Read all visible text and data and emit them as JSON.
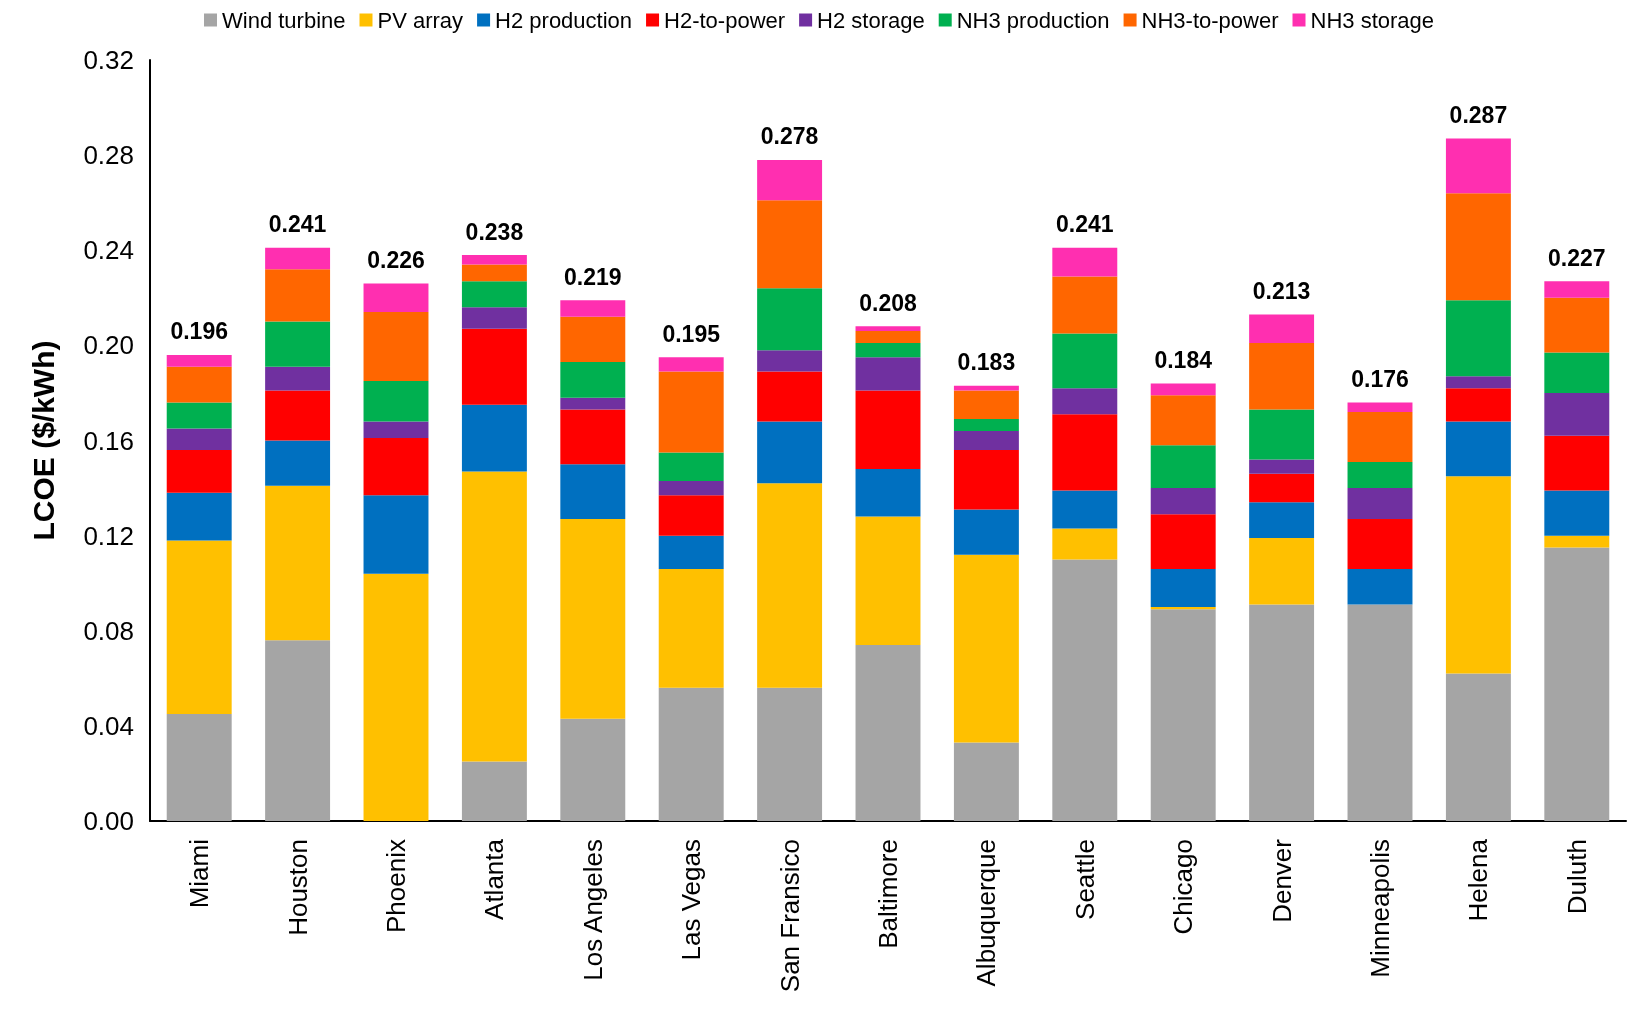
{
  "chart_data": {
    "type": "bar",
    "stacked": true,
    "ylabel": "LCOE ($/kWh)",
    "categories": [
      "Miami",
      "Houston",
      "Phoenix",
      "Atlanta",
      "Los Angeles",
      "Las Vegas",
      "San Fransico",
      "Baltimore",
      "Albuquerque",
      "Seattle",
      "Chicago",
      "Denver",
      "Minneapolis",
      "Helena",
      "Duluth"
    ],
    "series": [
      {
        "name": "Wind turbine",
        "color": "#a5a5a5",
        "values": [
          0.045,
          0.076,
          0,
          0.025,
          0.043,
          0.056,
          0.056,
          0.074,
          0.033,
          0.11,
          0.089,
          0.091,
          0.091,
          0.062,
          0.115
        ]
      },
      {
        "name": "PV array",
        "color": "#ffc000",
        "values": [
          0.073,
          0.065,
          0.104,
          0.122,
          0.084,
          0.05,
          0.086,
          0.054,
          0.079,
          0.013,
          0.001,
          0.028,
          0,
          0.083,
          0.005
        ]
      },
      {
        "name": "H2 production",
        "color": "#0070c0",
        "values": [
          0.02,
          0.019,
          0.033,
          0.028,
          0.023,
          0.014,
          0.026,
          0.02,
          0.019,
          0.016,
          0.016,
          0.015,
          0.015,
          0.023,
          0.019
        ]
      },
      {
        "name": "H2-to-power",
        "color": "#ff0000",
        "values": [
          0.018,
          0.021,
          0.024,
          0.032,
          0.023,
          0.017,
          0.021,
          0.033,
          0.025,
          0.032,
          0.023,
          0.012,
          0.021,
          0.014,
          0.023
        ]
      },
      {
        "name": "H2 storage",
        "color": "#7030a0",
        "values": [
          0.009,
          0.01,
          0.007,
          0.009,
          0.005,
          0.006,
          0.009,
          0.014,
          0.008,
          0.011,
          0.011,
          0.006,
          0.013,
          0.005,
          0.018
        ]
      },
      {
        "name": "NH3 production",
        "color": "#00b050",
        "values": [
          0.011,
          0.019,
          0.017,
          0.011,
          0.015,
          0.012,
          0.026,
          0.006,
          0.005,
          0.023,
          0.018,
          0.021,
          0.011,
          0.032,
          0.017
        ]
      },
      {
        "name": "NH3-to-power",
        "color": "#ff6600",
        "values": [
          0.015,
          0.022,
          0.029,
          0.007,
          0.019,
          0.034,
          0.037,
          0.005,
          0.012,
          0.024,
          0.021,
          0.028,
          0.021,
          0.045,
          0.023
        ]
      },
      {
        "name": "NH3 storage",
        "color": "#ff2fb0",
        "values": [
          0.005,
          0.009,
          0.012,
          0.004,
          0.007,
          0.006,
          0.017,
          0.002,
          0.002,
          0.012,
          0.005,
          0.012,
          0.004,
          0.023,
          0.007
        ]
      }
    ],
    "totals": [
      "0.196",
      "0.241",
      "0.226",
      "0.238",
      "0.219",
      "0.195",
      "0.278",
      "0.208",
      "0.183",
      "0.241",
      "0.184",
      "0.213",
      "0.176",
      "0.287",
      "0.227"
    ],
    "ylim": [
      0,
      0.32
    ],
    "yticks": [
      {
        "value": 0,
        "label": "0.00"
      },
      {
        "value": 0.04,
        "label": "0.04"
      },
      {
        "value": 0.08,
        "label": "0.08"
      },
      {
        "value": 0.12,
        "label": "0.12"
      },
      {
        "value": 0.16,
        "label": "0.16"
      },
      {
        "value": 0.2,
        "label": "0.20"
      },
      {
        "value": 0.24,
        "label": "0.24"
      },
      {
        "value": 0.28,
        "label": "0.28"
      },
      {
        "value": 0.32,
        "label": "0.32"
      }
    ],
    "grid": false,
    "legend": "top"
  }
}
